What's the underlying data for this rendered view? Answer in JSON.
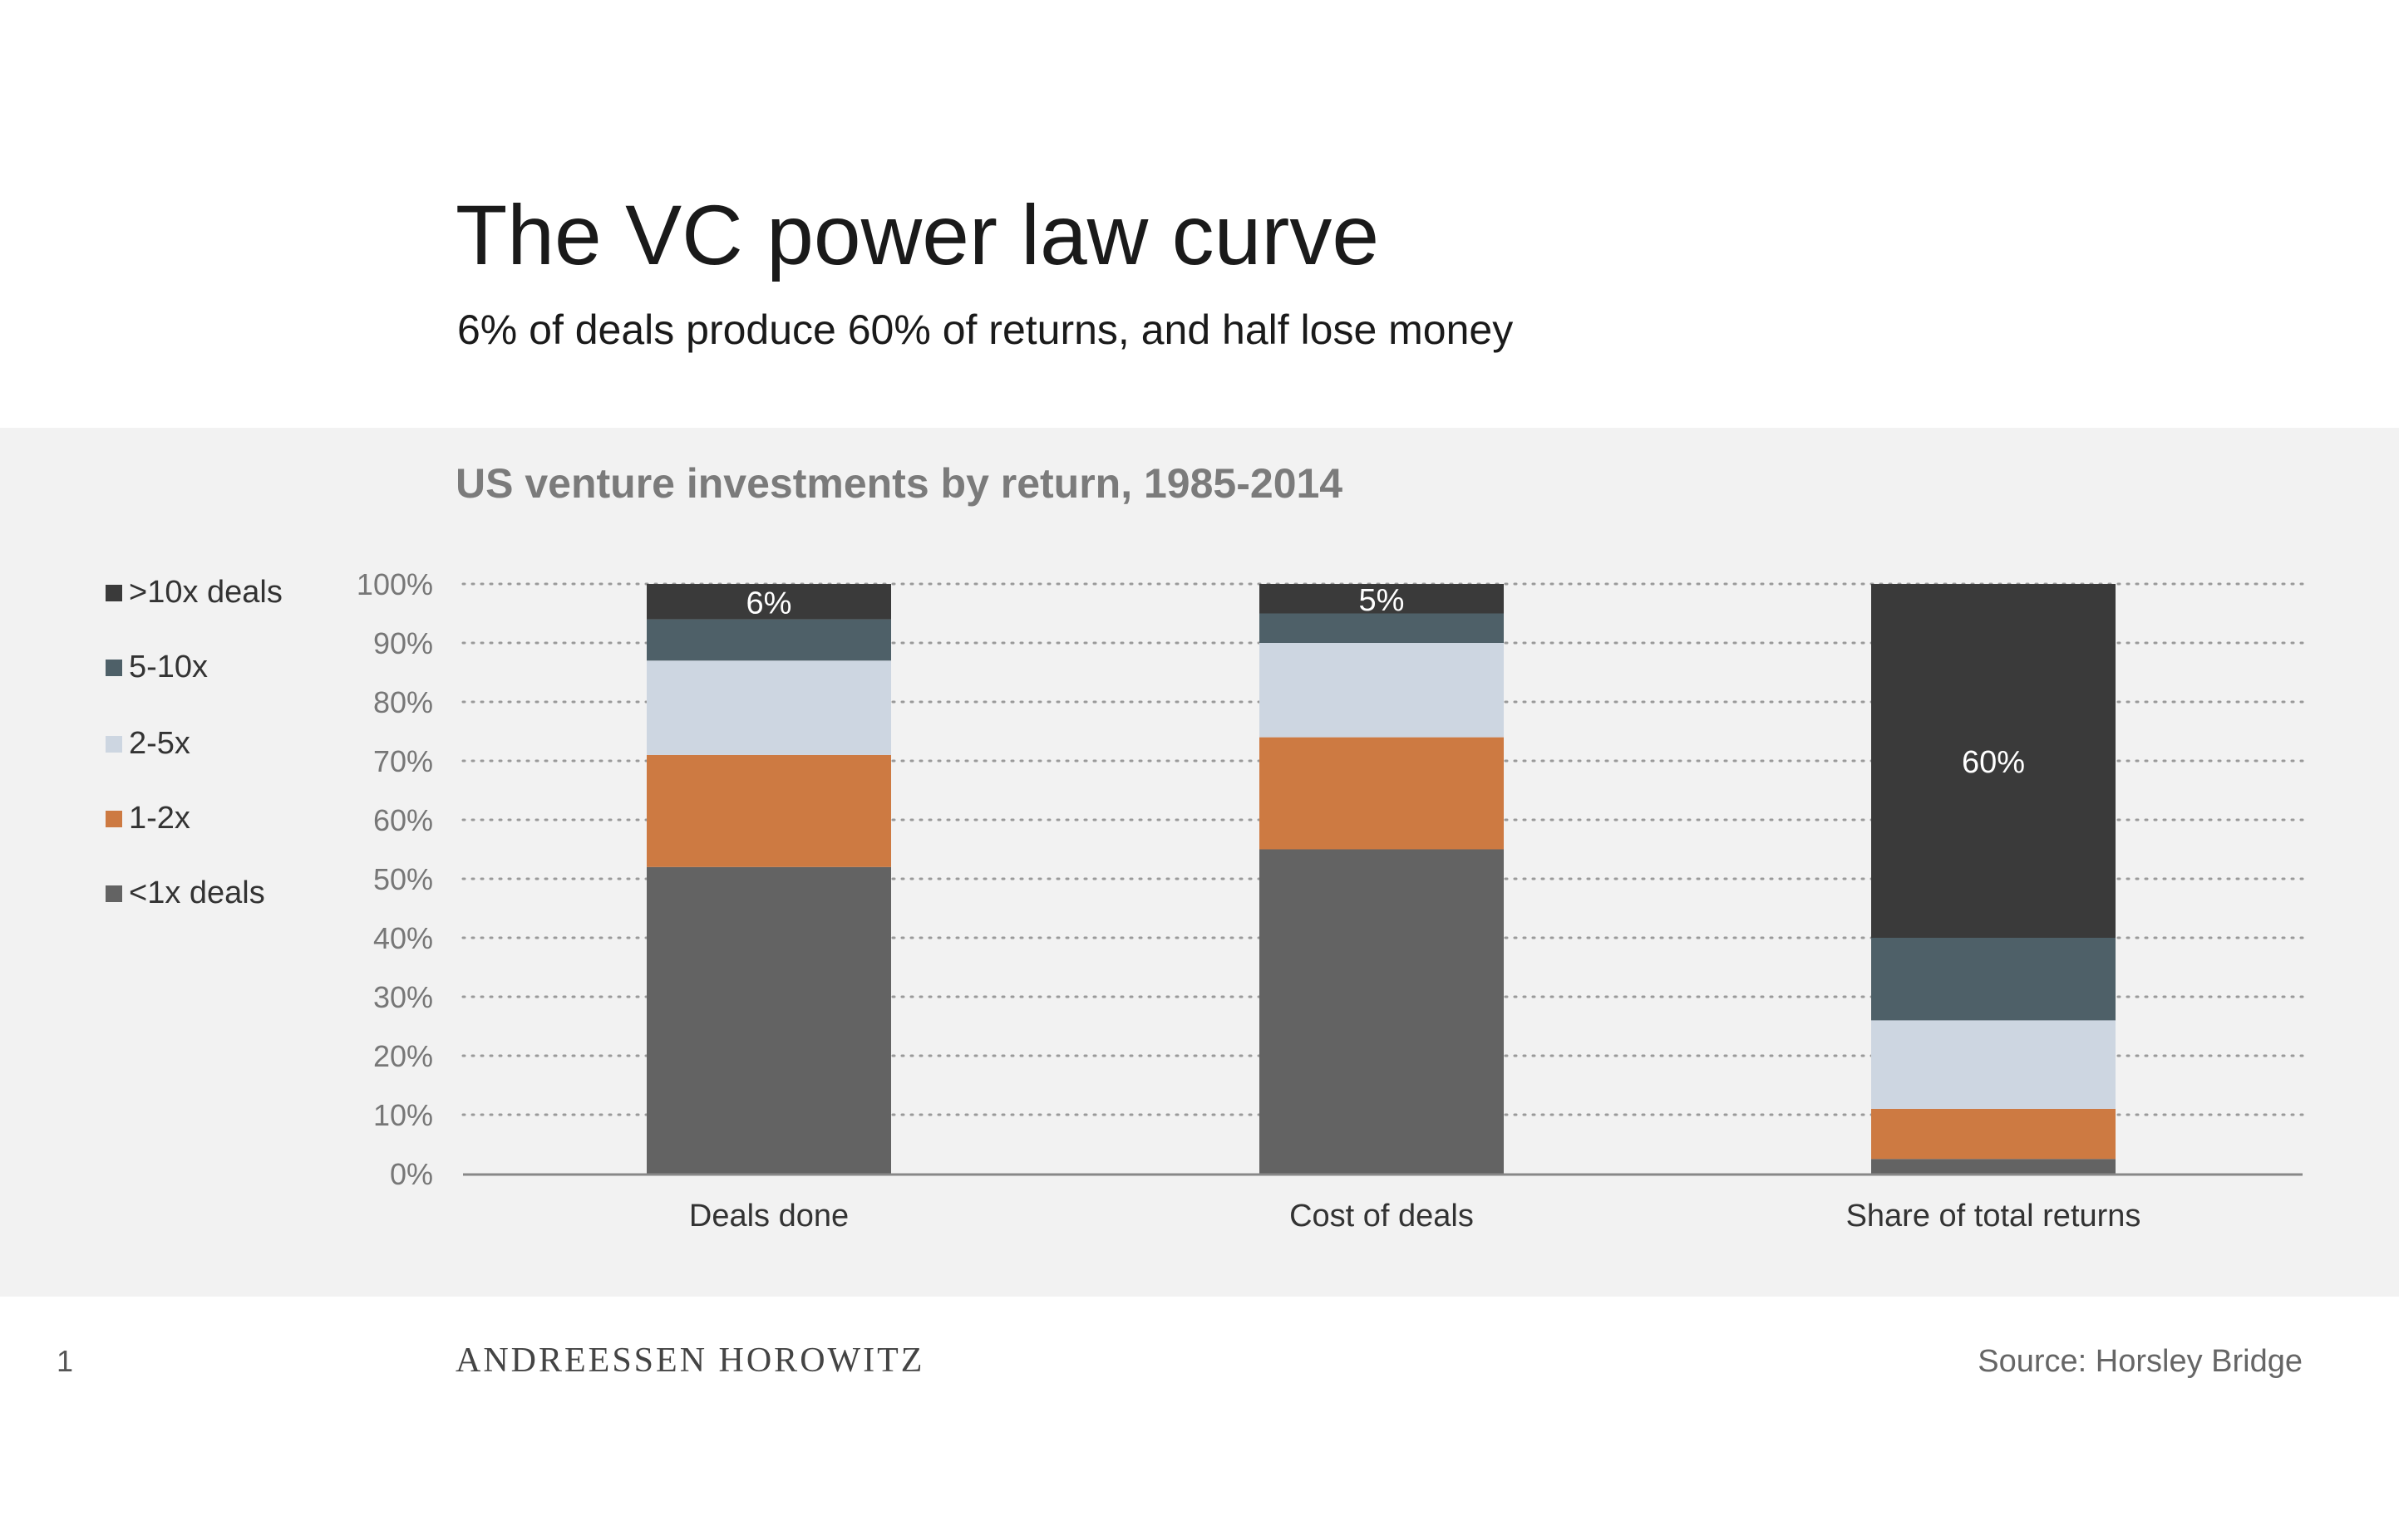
{
  "header": {
    "title": "The VC power law curve",
    "subtitle": "6% of deals produce 60% of returns, and half lose money"
  },
  "chart_data": {
    "type": "bar",
    "stacked": true,
    "title": "US venture investments by return, 1985-2014",
    "categories": [
      "Deals done",
      "Cost of deals",
      "Share of total returns"
    ],
    "ylim": [
      0,
      100
    ],
    "yticks": [
      "0%",
      "10%",
      "20%",
      "30%",
      "40%",
      "50%",
      "60%",
      "70%",
      "80%",
      "90%",
      "100%"
    ],
    "grid": true,
    "legend_position": "left",
    "series": [
      {
        "name": "<1x deals",
        "color": "#636363",
        "values": [
          52,
          55,
          2.5
        ]
      },
      {
        "name": "1-2x",
        "color": "#cd7a42",
        "values": [
          19,
          19,
          8.5
        ]
      },
      {
        "name": "2-5x",
        "color": "#cdd6e1",
        "values": [
          16,
          16,
          15
        ]
      },
      {
        "name": "5-10x",
        "color": "#4e6068",
        "values": [
          7,
          5,
          14
        ]
      },
      {
        "name": ">10x deals",
        "color": "#3a3a3a",
        "values": [
          6,
          5,
          60
        ]
      }
    ],
    "data_labels": [
      "6%",
      "5%",
      "60%"
    ]
  },
  "footer": {
    "page_number": "1",
    "logo": "ANDREESSEN HOROWITZ",
    "source": "Source: Horsley Bridge"
  }
}
